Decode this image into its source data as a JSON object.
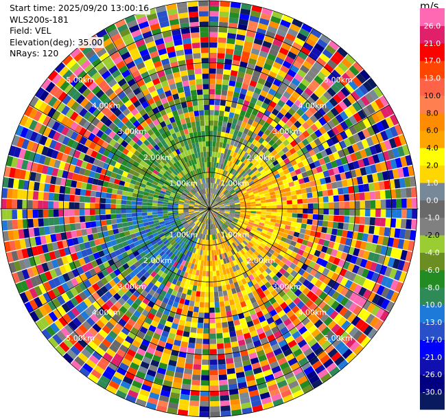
{
  "info": {
    "start_time": "Start time: 2025/09/20 13:00:16",
    "instrument": "WLS200s-181",
    "field": "Field: VEL",
    "elevation": "Elevation(deg): 35.00",
    "nrays": "NRays: 120"
  },
  "chart_data": {
    "type": "heatmap",
    "title": "",
    "projection": "polar PPI",
    "range_unit": "km",
    "range_rings_km": [
      1.0,
      2.0,
      3.0,
      4.0,
      5.0
    ],
    "range_ring_labels": [
      "1.00km",
      "2.00km",
      "3.00km",
      "4.00km",
      "5.00km"
    ],
    "max_range_km": 5.7,
    "n_rays": 120,
    "colorbar": {
      "unit": "m/s",
      "tick_labels": [
        "-30.0",
        "-26.0",
        "-21.0",
        "-17.0",
        "-13.0",
        "-10.0",
        "-8.0",
        "-6.0",
        "-4.0",
        "-2.0",
        "-1.0",
        "0.0",
        "1.0",
        "2.0",
        "4.0",
        "6.0",
        "8.0",
        "10.0",
        "13.0",
        "17.0",
        "21.0",
        "26.0"
      ],
      "colors_bottom_to_top": [
        "#0a1a5e",
        "#000080",
        "#1010b0",
        "#0000ff",
        "#2850c8",
        "#1e7ad8",
        "#2e8b57",
        "#228b22",
        "#6b8e23",
        "#9acd32",
        "#808080",
        "#696969",
        "#778899",
        "#ffd700",
        "#ffff00",
        "#ffa500",
        "#ff8c00",
        "#ff7f50",
        "#ff6347",
        "#ff4500",
        "#ff0000",
        "#e0206a",
        "#ff69b4"
      ]
    }
  }
}
